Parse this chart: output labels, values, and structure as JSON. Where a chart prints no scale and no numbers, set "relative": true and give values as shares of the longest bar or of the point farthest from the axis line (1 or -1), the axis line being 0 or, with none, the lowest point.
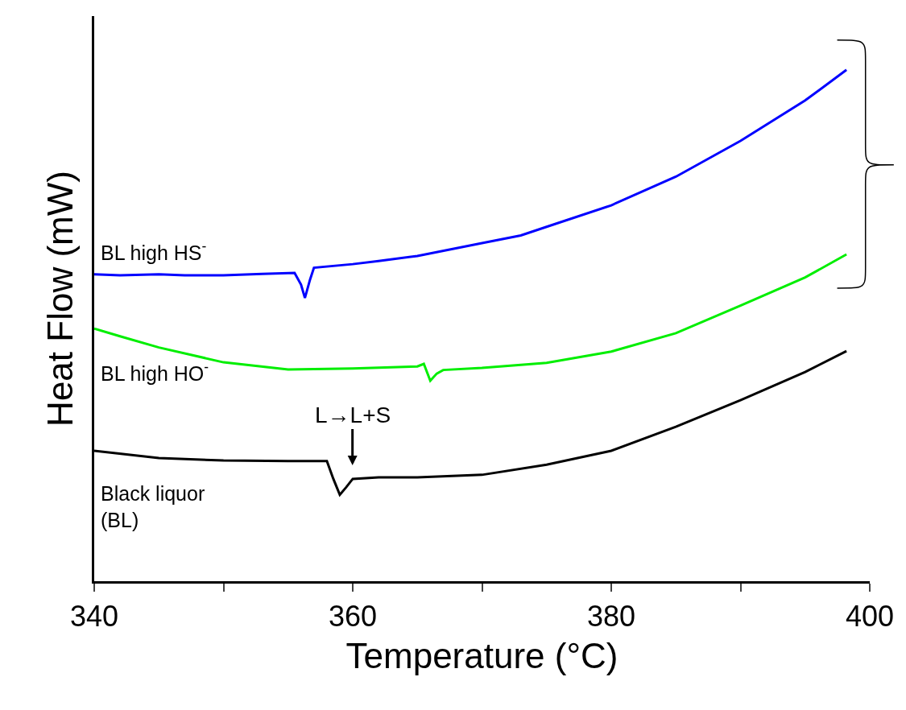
{
  "chart_data": {
    "type": "line",
    "relative": true,
    "xlabel": "Temperature (°C)",
    "ylabel": "Heat Flow (mW)",
    "xlim": [
      340,
      400
    ],
    "xticks": [
      340,
      {
        "value": 350,
        "label": null
      },
      360,
      {
        "value": 370,
        "label": null
      },
      380,
      {
        "value": 390,
        "label": null
      },
      400
    ],
    "legend": false,
    "marker": "none",
    "line_style": "solid",
    "annotations": [
      "L→L+S"
    ],
    "series": [
      {
        "name": "BL high HS$^{-}$",
        "color": "#0000ff",
        "x": [
          340,
          342,
          345,
          347,
          350,
          353,
          355.5,
          356,
          356.3,
          356.7,
          357,
          360,
          362,
          365,
          370,
          373,
          375,
          380,
          385,
          390,
          395,
          398.2
        ],
        "values": [
          0.6,
          0.598,
          0.6,
          0.598,
          0.598,
          0.601,
          0.603,
          0.58,
          0.554,
          0.59,
          0.613,
          0.62,
          0.626,
          0.636,
          0.661,
          0.676,
          0.693,
          0.735,
          0.791,
          0.861,
          0.94,
          1.0
        ]
      },
      {
        "name": "BL high HO$^{-}$",
        "color": "#00ee00",
        "x": [
          340,
          342,
          345,
          350,
          355,
          360,
          365,
          365.5,
          366,
          366.5,
          367,
          370,
          375,
          380,
          385,
          390,
          395,
          398.2
        ],
        "values": [
          0.494,
          0.479,
          0.457,
          0.428,
          0.414,
          0.416,
          0.42,
          0.425,
          0.392,
          0.406,
          0.413,
          0.417,
          0.427,
          0.449,
          0.485,
          0.539,
          0.594,
          0.639
        ]
      },
      {
        "name": "Black liquor\n(BL)",
        "color": "#000000",
        "x": [
          340,
          345,
          350,
          355,
          358,
          358.5,
          359,
          359.5,
          360,
          362,
          365,
          370,
          375,
          380,
          385,
          390,
          395,
          398.2
        ],
        "values": [
          0.255,
          0.241,
          0.236,
          0.235,
          0.235,
          0.2,
          0.169,
          0.184,
          0.2,
          0.203,
          0.203,
          0.208,
          0.228,
          0.255,
          0.302,
          0.354,
          0.409,
          0.45
        ]
      }
    ]
  }
}
